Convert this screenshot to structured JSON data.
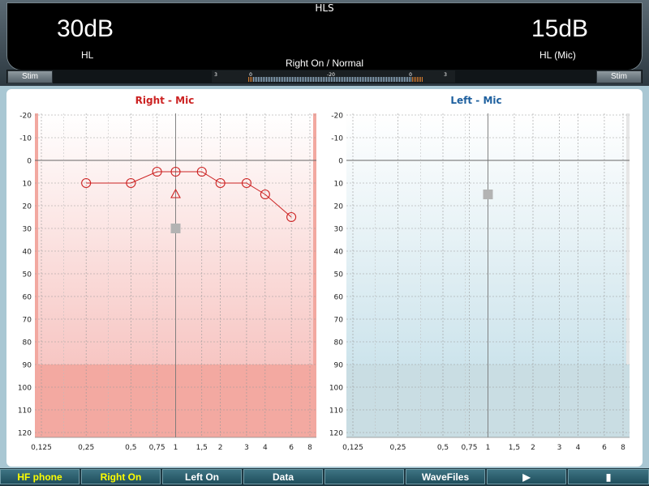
{
  "header": {
    "title": "HLS",
    "left_level": "30dB",
    "left_label": "HL",
    "right_level": "15dB",
    "right_label": "HL (Mic)",
    "status": "Right On / Normal",
    "stim_left": "Stim",
    "stim_right": "Stim",
    "vu_ticks": [
      "3",
      "0",
      "-20",
      "0",
      "3"
    ]
  },
  "colors": {
    "right_ear": "#cc2222",
    "left_ear": "#1d5f9e"
  },
  "chart_data": [
    {
      "type": "line",
      "title": "Right - Mic",
      "x_ticks": [
        "0,125",
        "0,25",
        "0,5",
        "0,75",
        "1",
        "1,5",
        "2",
        "3",
        "4",
        "6",
        "8"
      ],
      "y_ticks": [
        "-20",
        "-10",
        "0",
        "10",
        "20",
        "30",
        "40",
        "50",
        "60",
        "70",
        "80",
        "90",
        "100",
        "110",
        "120"
      ],
      "ylim": [
        -20,
        120
      ],
      "inverted_y": true,
      "log_x": true,
      "grid": true,
      "series": [
        {
          "marker": "circle",
          "x": [
            0.25,
            0.5,
            0.75,
            1,
            1.5,
            2,
            3,
            4,
            6
          ],
          "y": [
            10,
            10,
            5,
            5,
            5,
            10,
            10,
            15,
            25
          ]
        }
      ],
      "extra_points": [
        {
          "marker": "triangle",
          "x": 1,
          "y": 15
        },
        {
          "marker": "square",
          "x": 1,
          "y": 30
        }
      ]
    },
    {
      "type": "scatter",
      "title": "Left - Mic",
      "x_ticks": [
        "0,125",
        "0,25",
        "0,5",
        "0,75",
        "1",
        "1,5",
        "2",
        "3",
        "4",
        "6",
        "8"
      ],
      "y_ticks": [
        "-20",
        "-10",
        "0",
        "10",
        "20",
        "30",
        "40",
        "50",
        "60",
        "70",
        "80",
        "90",
        "100",
        "110",
        "120"
      ],
      "ylim": [
        -20,
        120
      ],
      "inverted_y": true,
      "log_x": true,
      "grid": true,
      "series": [],
      "extra_points": [
        {
          "marker": "square",
          "x": 1,
          "y": 15
        }
      ]
    }
  ],
  "toolbar": {
    "buttons": [
      "HF phone",
      "Right On",
      "Left On",
      "Data",
      "",
      "WaveFiles",
      "▶",
      "▮"
    ]
  }
}
